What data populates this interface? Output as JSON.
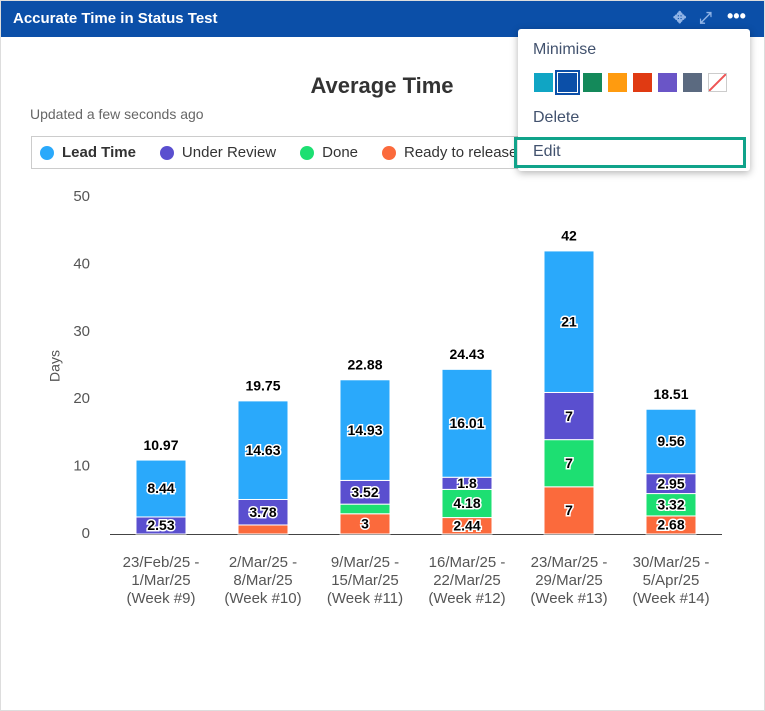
{
  "gadget": {
    "title": "Accurate Time in Status Test",
    "updated": "Updated a few seconds ago",
    "menu": {
      "minimise": "Minimise",
      "delete": "Delete",
      "edit": "Edit"
    }
  },
  "chart_data": {
    "type": "stacked-bar",
    "title": "Average Time",
    "y_label": "Days",
    "categories": [
      "23/Feb/25 -\n1/Mar/25\n(Week #9)",
      "2/Mar/25 -\n8/Mar/25\n(Week #10)",
      "9/Mar/25 -\n15/Mar/25\n(Week #11)",
      "16/Mar/25 -\n22/Mar/25\n(Week #12)",
      "23/Mar/25 -\n29/Mar/25\n(Week #13)",
      "30/Mar/25 -\n5/Apr/25\n(Week #14)"
    ],
    "series": [
      {
        "name": "Lead Time",
        "color": "#2aa9fb",
        "values": [
          8.44,
          14.63,
          14.93,
          16.01,
          21,
          9.56
        ]
      },
      {
        "name": "Under Review",
        "color": "#5a4fcf",
        "values": [
          2.53,
          3.78,
          3.52,
          1.8,
          7,
          2.95
        ]
      },
      {
        "name": "Done",
        "color": "#1ddf72",
        "values": [
          null,
          null,
          1.43,
          4.18,
          7,
          3.32
        ]
      },
      {
        "name": "Ready to release",
        "color": "#fb6a3c",
        "values": [
          null,
          1.34,
          3,
          2.44,
          7,
          2.68
        ]
      }
    ],
    "totals": [
      10.97,
      19.75,
      22.88,
      24.43,
      42,
      18.51
    ],
    "ylim": [
      0,
      50
    ],
    "yticks": [
      0,
      10,
      20,
      30,
      40,
      50
    ],
    "grid": false
  }
}
